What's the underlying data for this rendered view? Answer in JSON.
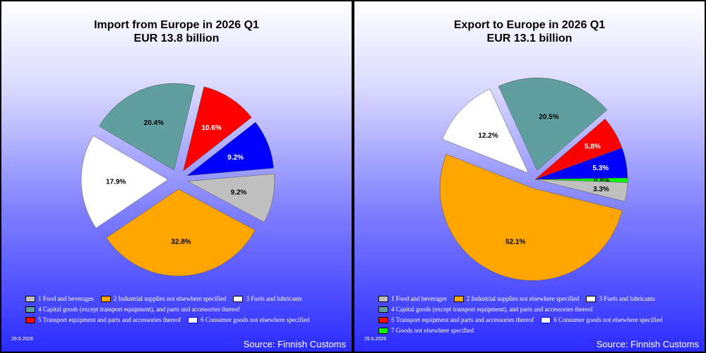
{
  "colors": {
    "food": "#c0c0c0",
    "industrial": "#ffa500",
    "fuels": "#ffffff",
    "capital": "#5f9f9f",
    "transport": "#ff0000",
    "consumer": "#0000ff",
    "other": "#00ff00"
  },
  "chart_data": [
    {
      "type": "pie",
      "title": "Import from Europe in 2026 Q1",
      "subtitle": "EUR  13.8 billion",
      "start_angle_deg": 5,
      "explode_all": true,
      "slices": [
        {
          "key": "consumer",
          "value": 9.2,
          "label": "9.2%",
          "color": "#0000ff"
        },
        {
          "key": "transport",
          "value": 10.6,
          "label": "10.6%",
          "color": "#ff0000"
        },
        {
          "key": "capital",
          "value": 20.4,
          "label": "20.4%",
          "color": "#5f9f9f"
        },
        {
          "key": "fuels",
          "value": 17.9,
          "label": "17.9%",
          "color": "#ffffff"
        },
        {
          "key": "industrial",
          "value": 32.8,
          "label": "32.8%",
          "color": "#ffa500"
        },
        {
          "key": "food",
          "value": 9.2,
          "label": "9.2%",
          "color": "#c0c0c0"
        }
      ],
      "legend": [
        [
          {
            "key": "food",
            "label": "1 Food and beverages"
          },
          {
            "key": "industrial",
            "label": "2 Industrial supplies not elsewhere specified"
          },
          {
            "key": "fuels",
            "label": "3 Fuels and lubricants"
          }
        ],
        [
          {
            "key": "capital",
            "label": "4 Capital goods (except transport equipment), and parts and accessories thereof"
          }
        ],
        [
          {
            "key": "transport",
            "label": "5  Transport equipment and parts and accessories thereof"
          },
          {
            "key": "consumer",
            "label": "6 Consumer goods not elsewhere specified"
          }
        ]
      ],
      "date": "29.6.2026",
      "source": "Source: Finnish Customs"
    },
    {
      "type": "pie",
      "title": "Export to Europe in 2026 Q1",
      "subtitle": "EUR  13.1 billion",
      "start_angle_deg": -2,
      "explode_all": false,
      "slices": [
        {
          "key": "other",
          "value": 0.8,
          "label": "0.8%",
          "color": "#00ff00",
          "explode": false
        },
        {
          "key": "consumer",
          "value": 5.3,
          "label": "5.3%",
          "color": "#0000ff",
          "explode": false
        },
        {
          "key": "transport",
          "value": 5.8,
          "label": "5.8%",
          "color": "#ff0000",
          "explode": false
        },
        {
          "key": "capital",
          "value": 20.5,
          "label": "20.5%",
          "color": "#5f9f9f",
          "explode": true
        },
        {
          "key": "fuels",
          "value": 12.2,
          "label": "12.2%",
          "color": "#ffffff",
          "explode": true
        },
        {
          "key": "industrial",
          "value": 52.1,
          "label": "52.1%",
          "color": "#ffa500",
          "explode": true
        },
        {
          "key": "food",
          "value": 3.3,
          "label": "3.3%",
          "color": "#c0c0c0",
          "explode": false
        }
      ],
      "legend": [
        [
          {
            "key": "food",
            "label": "1 Food and beverages"
          },
          {
            "key": "industrial",
            "label": "2 Industrial supplies not elsewhere specified"
          },
          {
            "key": "fuels",
            "label": "3 Fuels and lubricants"
          }
        ],
        [
          {
            "key": "capital",
            "label": "4 Capital goods (except transport equipment), and parts and accessories thereof"
          }
        ],
        [
          {
            "key": "transport",
            "label": "5  Transport equipment and parts and accessories thereof"
          },
          {
            "key": "consumer",
            "label": "6 Consumer goods not elsewhere specified"
          }
        ],
        [
          {
            "key": "other",
            "label": "7 Goods not elsewhere specified"
          }
        ]
      ],
      "date": "29.6.2026",
      "source": "Source: Finnish Customs"
    }
  ]
}
